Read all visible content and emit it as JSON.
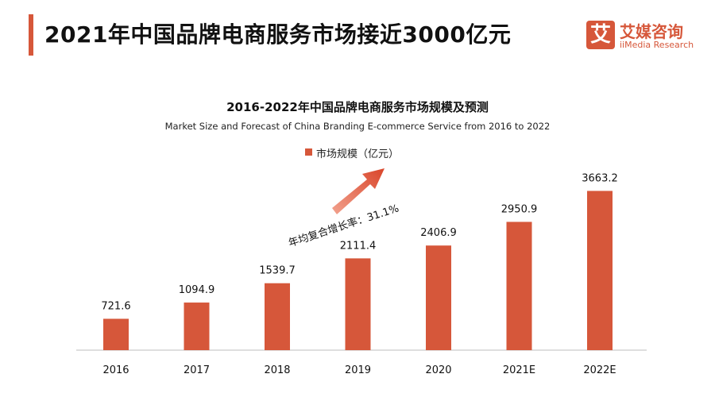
{
  "header": {
    "title": "2021年中国品牌电商服务市场接近3000亿元"
  },
  "logo": {
    "mark": "艾",
    "name_cn": "艾媒咨询",
    "name_en": "iiMedia Research"
  },
  "colors": {
    "accent": "#d6573a",
    "bar": "#d6573a"
  },
  "chart_data": {
    "type": "bar",
    "title": "2016-2022年中国品牌电商服务市场规模及预测",
    "subtitle": "Market Size and Forecast of China Branding E-commerce Service from 2016 to 2022",
    "legend_position": "top-center",
    "grid": false,
    "categories": [
      "2016",
      "2017",
      "2018",
      "2019",
      "2020",
      "2021E",
      "2022E"
    ],
    "series": [
      {
        "name": "市场规模（亿元）",
        "values": [
          721.6,
          1094.9,
          1539.7,
          2111.4,
          2406.9,
          2950.9,
          3663.2
        ],
        "labels": [
          "721.6",
          "1094.9",
          "1539.7",
          "2111.4",
          "2406.9",
          "2950.9",
          "3663.2"
        ]
      }
    ],
    "ylim": [
      0,
      4000
    ],
    "annotation": "年均复合增长率：31.1%"
  }
}
